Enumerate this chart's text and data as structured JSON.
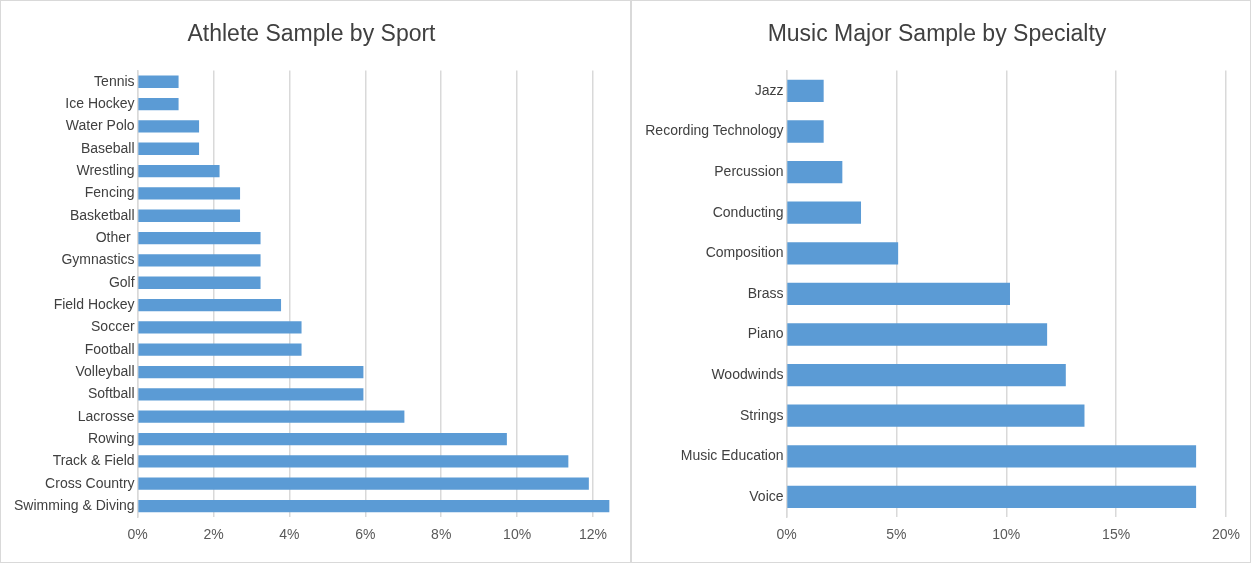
{
  "chart_data": [
    {
      "type": "bar",
      "orientation": "horizontal",
      "title": "Athlete Sample by Sport",
      "categories": [
        "Tennis",
        "Ice Hockey",
        "Water Polo",
        "Baseball",
        "Wrestling",
        "Fencing",
        "Basketball",
        "Other ",
        "Gymnastics",
        "Golf",
        "Field Hockey",
        "Soccer",
        "Football",
        "Volleyball",
        "Softball",
        "Lacrosse",
        "Rowing",
        "Track & Field",
        "Cross Country",
        "Swimming & Diving"
      ],
      "values": [
        1.08,
        1.08,
        1.62,
        1.62,
        2.16,
        2.7,
        2.7,
        3.24,
        3.24,
        3.24,
        3.78,
        4.32,
        4.32,
        5.95,
        5.95,
        7.03,
        9.73,
        11.35,
        11.89,
        12.43
      ],
      "color": "#5b9bd5",
      "xlim": [
        0,
        12.5
      ],
      "xticks": [
        {
          "value": 0,
          "label": "0%"
        },
        {
          "value": 2,
          "label": "2%"
        },
        {
          "value": 4,
          "label": "4%"
        },
        {
          "value": 6,
          "label": "6%"
        },
        {
          "value": 8,
          "label": "8%"
        },
        {
          "value": 10,
          "label": "10%"
        },
        {
          "value": 12,
          "label": "12%"
        }
      ],
      "grid": "x",
      "legend": false
    },
    {
      "type": "bar",
      "orientation": "horizontal",
      "title": "Music Major Sample by Specialty",
      "categories": [
        "Jazz",
        "Recording Technology",
        "Percussion",
        "Conducting",
        "Composition",
        "Brass",
        "Piano",
        "Woodwinds",
        "Strings",
        "Music Education",
        "Voice"
      ],
      "values": [
        1.69,
        1.69,
        2.54,
        3.39,
        5.08,
        10.17,
        11.86,
        12.71,
        13.56,
        18.64,
        18.64
      ],
      "color": "#5b9bd5",
      "xlim": [
        0,
        20
      ],
      "xticks": [
        {
          "value": 0,
          "label": "0%"
        },
        {
          "value": 5,
          "label": "5%"
        },
        {
          "value": 10,
          "label": "10%"
        },
        {
          "value": 15,
          "label": "15%"
        },
        {
          "value": 20,
          "label": "20%"
        }
      ],
      "grid": "x",
      "legend": false
    }
  ]
}
